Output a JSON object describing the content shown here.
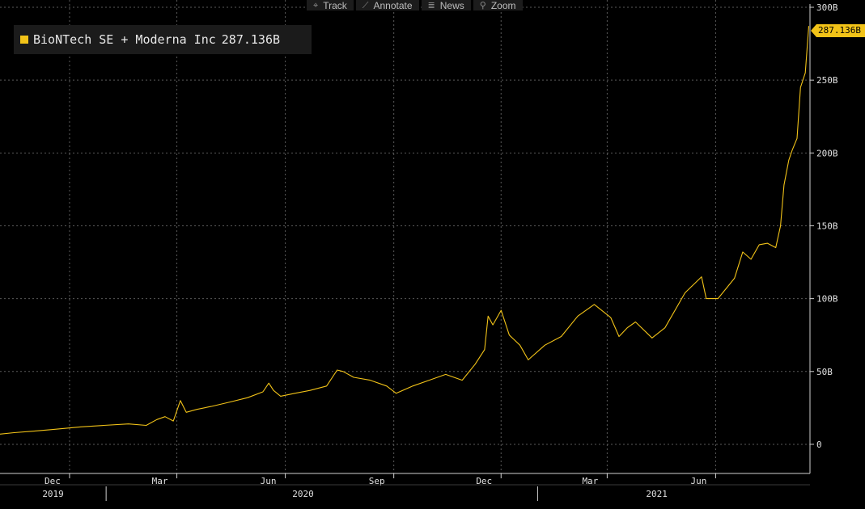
{
  "toolbar": {
    "buttons": [
      {
        "label": "Track",
        "icon": "crosshair-icon",
        "glyph": "⌖"
      },
      {
        "label": "Annotate",
        "icon": "pencil-icon",
        "glyph": "⟋"
      },
      {
        "label": "News",
        "icon": "news-icon",
        "glyph": "≣"
      },
      {
        "label": "Zoom",
        "icon": "magnifier-icon",
        "glyph": "⚲"
      }
    ]
  },
  "legend": {
    "series_name": "BioNTech SE + Moderna Inc",
    "last_value": "287.136B",
    "color": "#f2c318"
  },
  "last_value_tag": "287.136B",
  "chart_data": {
    "type": "line",
    "title": "",
    "xlabel": "",
    "ylabel": "",
    "ylim": [
      -20,
      305
    ],
    "yticks": [
      0,
      50,
      100,
      150,
      200,
      250,
      300
    ],
    "ytick_labels": [
      "0",
      "50B",
      "100B",
      "150B",
      "200B",
      "250B",
      "300B"
    ],
    "xlim": [
      "2019-10-03",
      "2021-08-20"
    ],
    "month_ticks": [
      {
        "date": "2019-12-01",
        "label": "Dec"
      },
      {
        "date": "2020-03-01",
        "label": "Mar"
      },
      {
        "date": "2020-06-01",
        "label": "Jun"
      },
      {
        "date": "2020-09-01",
        "label": "Sep"
      },
      {
        "date": "2020-12-01",
        "label": "Dec"
      },
      {
        "date": "2021-03-01",
        "label": "Mar"
      },
      {
        "date": "2021-06-01",
        "label": "Jun"
      }
    ],
    "year_labels": [
      {
        "label": "2019",
        "center": "2019-11-17"
      },
      {
        "label": "2020",
        "center": "2020-06-16"
      },
      {
        "label": "2021",
        "center": "2021-04-12"
      }
    ],
    "year_separators": [
      "2020-01-01",
      "2021-01-01"
    ],
    "grid": true,
    "legend_position": "top-left",
    "series": [
      {
        "name": "BioNTech SE + Moderna Inc",
        "color": "#f2c318",
        "points": [
          [
            "2019-10-03",
            7
          ],
          [
            "2019-10-15",
            8
          ],
          [
            "2019-10-31",
            9
          ],
          [
            "2019-11-14",
            10
          ],
          [
            "2019-11-28",
            11
          ],
          [
            "2019-12-11",
            12
          ],
          [
            "2019-12-30",
            13
          ],
          [
            "2020-01-20",
            14
          ],
          [
            "2020-02-04",
            13
          ],
          [
            "2020-02-13",
            17
          ],
          [
            "2020-02-20",
            19
          ],
          [
            "2020-02-27",
            16
          ],
          [
            "2020-03-04",
            30
          ],
          [
            "2020-03-09",
            22
          ],
          [
            "2020-03-18",
            24
          ],
          [
            "2020-03-30",
            26
          ],
          [
            "2020-04-15",
            29
          ],
          [
            "2020-04-30",
            32
          ],
          [
            "2020-05-13",
            36
          ],
          [
            "2020-05-18",
            42
          ],
          [
            "2020-05-22",
            37
          ],
          [
            "2020-05-28",
            33
          ],
          [
            "2020-06-09",
            35
          ],
          [
            "2020-06-22",
            37
          ],
          [
            "2020-07-06",
            40
          ],
          [
            "2020-07-15",
            51
          ],
          [
            "2020-07-20",
            50
          ],
          [
            "2020-07-29",
            46
          ],
          [
            "2020-08-12",
            44
          ],
          [
            "2020-08-26",
            40
          ],
          [
            "2020-09-03",
            35
          ],
          [
            "2020-09-17",
            40
          ],
          [
            "2020-10-01",
            44
          ],
          [
            "2020-10-15",
            48
          ],
          [
            "2020-10-29",
            44
          ],
          [
            "2020-11-09",
            55
          ],
          [
            "2020-11-17",
            65
          ],
          [
            "2020-11-20",
            88
          ],
          [
            "2020-11-24",
            82
          ],
          [
            "2020-12-01",
            92
          ],
          [
            "2020-12-08",
            75
          ],
          [
            "2020-12-17",
            68
          ],
          [
            "2020-12-24",
            58
          ],
          [
            "2021-01-07",
            68
          ],
          [
            "2021-01-21",
            74
          ],
          [
            "2021-02-04",
            88
          ],
          [
            "2021-02-18",
            96
          ],
          [
            "2021-03-04",
            87
          ],
          [
            "2021-03-11",
            74
          ],
          [
            "2021-03-18",
            80
          ],
          [
            "2021-03-25",
            84
          ],
          [
            "2021-04-08",
            73
          ],
          [
            "2021-04-19",
            80
          ],
          [
            "2021-05-06",
            104
          ],
          [
            "2021-05-20",
            115
          ],
          [
            "2021-05-24",
            100
          ],
          [
            "2021-06-03",
            100
          ],
          [
            "2021-06-10",
            107
          ],
          [
            "2021-06-17",
            114
          ],
          [
            "2021-06-24",
            132
          ],
          [
            "2021-07-01",
            127
          ],
          [
            "2021-07-08",
            137
          ],
          [
            "2021-07-15",
            138
          ],
          [
            "2021-07-22",
            135
          ],
          [
            "2021-07-26",
            150
          ],
          [
            "2021-07-29",
            178
          ],
          [
            "2021-08-02",
            195
          ],
          [
            "2021-08-05",
            202
          ],
          [
            "2021-08-09",
            210
          ],
          [
            "2021-08-12",
            245
          ],
          [
            "2021-08-16",
            255
          ],
          [
            "2021-08-19",
            287.136
          ]
        ]
      }
    ]
  }
}
